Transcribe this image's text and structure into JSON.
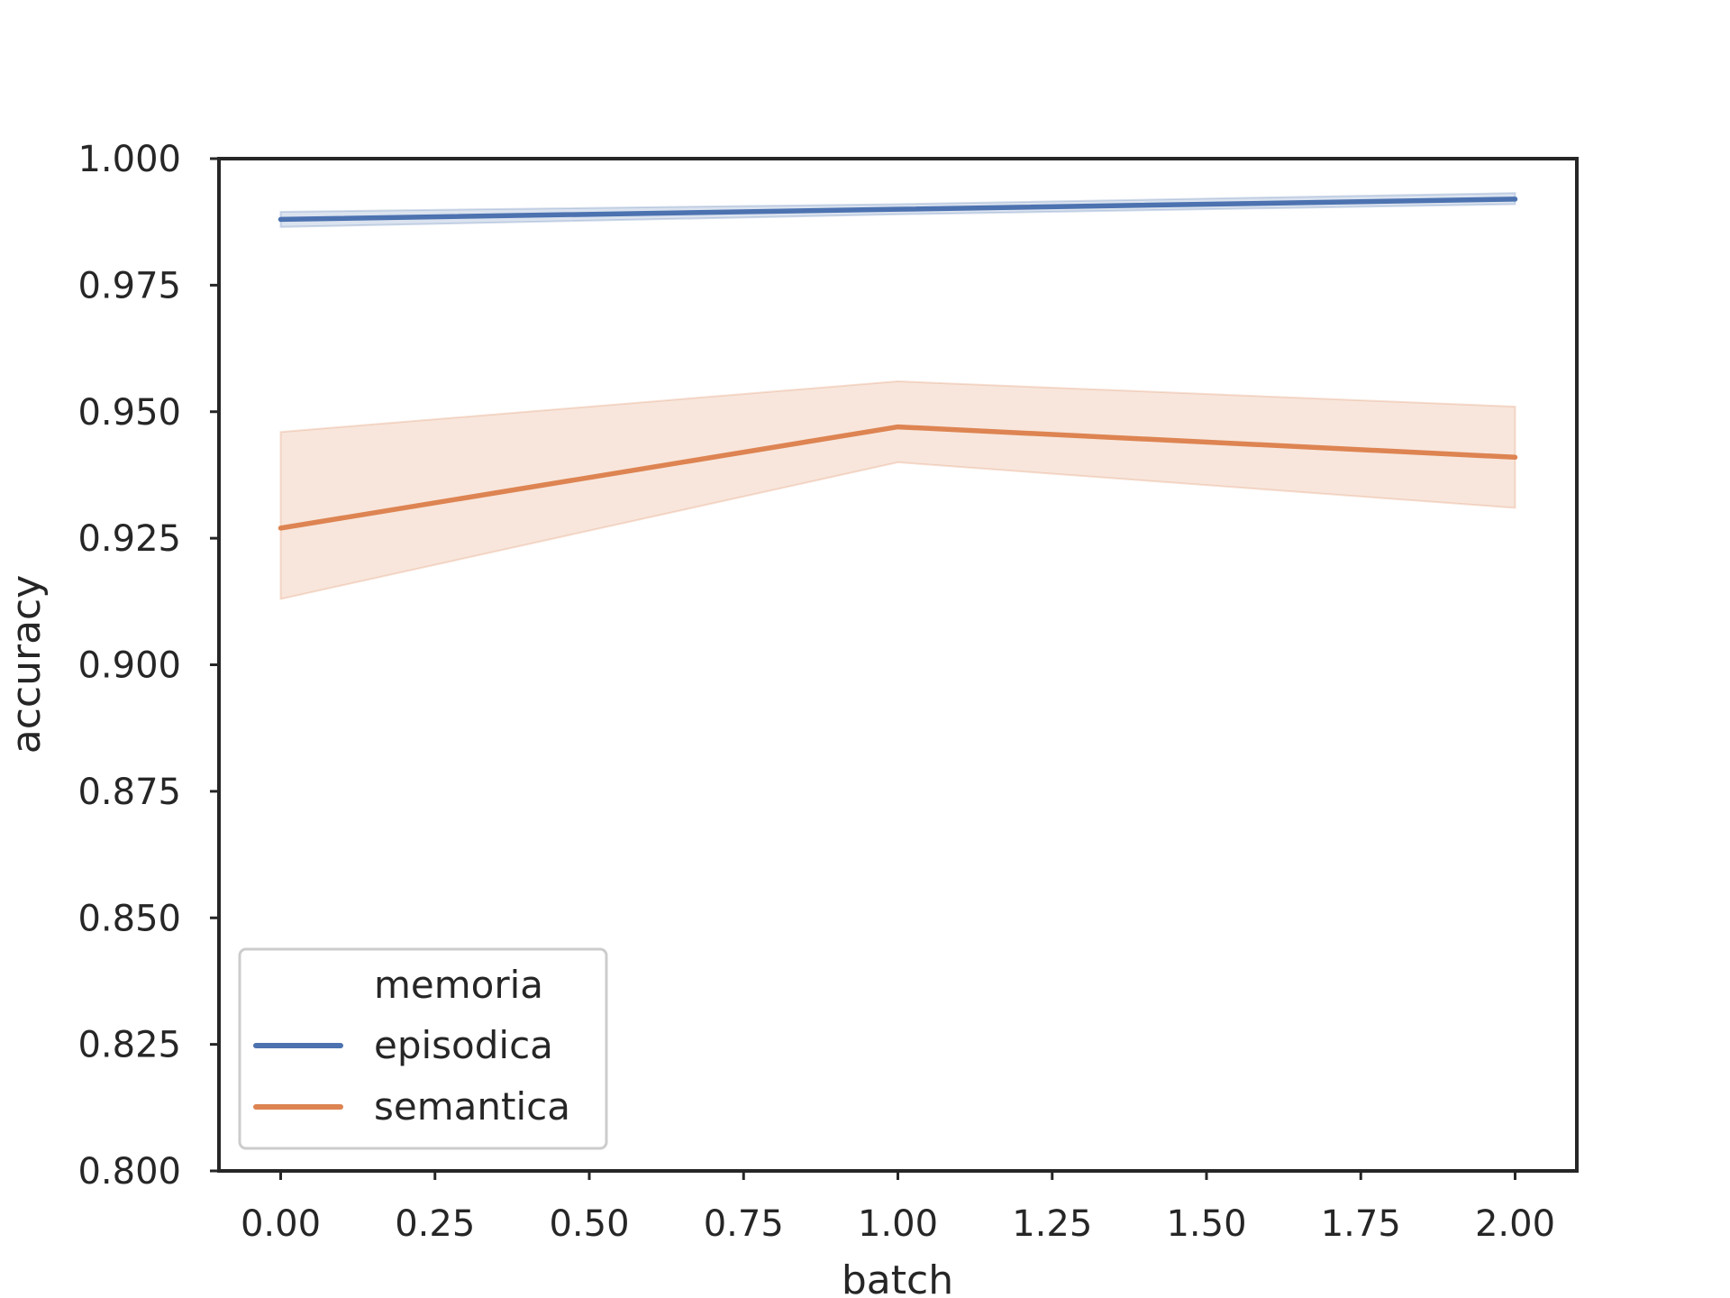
{
  "chart_data": {
    "type": "line",
    "xlabel": "batch",
    "ylabel": "accuracy",
    "xlim": [
      -0.1,
      2.1
    ],
    "ylim": [
      0.8,
      1.0
    ],
    "xticks": [
      "0.00",
      "0.25",
      "0.50",
      "0.75",
      "1.00",
      "1.25",
      "1.50",
      "1.75",
      "2.00"
    ],
    "yticks": [
      "0.800",
      "0.825",
      "0.850",
      "0.875",
      "0.900",
      "0.925",
      "0.950",
      "0.975",
      "1.000"
    ],
    "grid": false,
    "legend": {
      "title": "memoria",
      "placement": "lower-left"
    },
    "series": [
      {
        "name": "episodica",
        "color": "#4c72b0",
        "x": [
          0,
          1,
          2
        ],
        "y": [
          0.988,
          0.99,
          0.992
        ],
        "ci_lower": [
          0.9865,
          0.989,
          0.991
        ],
        "ci_upper": [
          0.9895,
          0.991,
          0.9932
        ]
      },
      {
        "name": "semantica",
        "color": "#dd8452",
        "x": [
          0,
          1,
          2
        ],
        "y": [
          0.927,
          0.947,
          0.941
        ],
        "ci_lower": [
          0.913,
          0.94,
          0.931
        ],
        "ci_upper": [
          0.946,
          0.956,
          0.951
        ]
      }
    ]
  }
}
